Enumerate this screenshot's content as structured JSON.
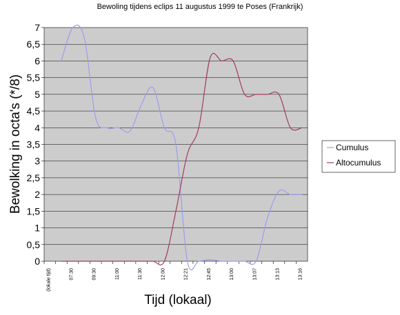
{
  "chart_data": {
    "type": "line",
    "title": "Bewoling tijdens eclips 11 augustus 1999 te Poses (Frankrijk)",
    "xlabel": "Tijd (lokaal)",
    "ylabel": "Bewolking in octa's (*/8)",
    "ylim": [
      0,
      7
    ],
    "grid": true,
    "legend_position": "right",
    "y_ticks": [
      "0",
      "0,5",
      "1",
      "1,5",
      "2",
      "2,5",
      "3",
      "3,5",
      "4",
      "4,5",
      "5",
      "5,5",
      "6",
      "6,5",
      "7"
    ],
    "categories": [
      "(lokale tijd)",
      "",
      "07:30",
      "",
      "09:30",
      "",
      "11:00",
      "",
      "11:30",
      "",
      "12:00",
      "",
      "12:21",
      "",
      "12:45",
      "",
      "13:00",
      "",
      "13:07",
      "",
      "13:13",
      "",
      "13:16"
    ],
    "series": [
      {
        "name": "Cumulus",
        "color": "#9c9cf0",
        "values": [
          null,
          6.0,
          7.0,
          6.7,
          4.3,
          4.0,
          4.0,
          3.9,
          4.7,
          5.2,
          4.0,
          3.5,
          0.0,
          0.0,
          0.05,
          0.0,
          0.0,
          0.0,
          0.0,
          1.3,
          2.1,
          2.0,
          2.0
        ]
      },
      {
        "name": "Altocumulus",
        "color": "#a43a5a",
        "values": [
          null,
          0.0,
          0.0,
          0.0,
          0.0,
          0.0,
          0.0,
          0.0,
          0.0,
          0.0,
          0.0,
          1.5,
          3.2,
          4.0,
          6.1,
          6.0,
          6.0,
          5.0,
          5.0,
          5.0,
          5.0,
          4.0,
          4.0
        ]
      }
    ]
  }
}
